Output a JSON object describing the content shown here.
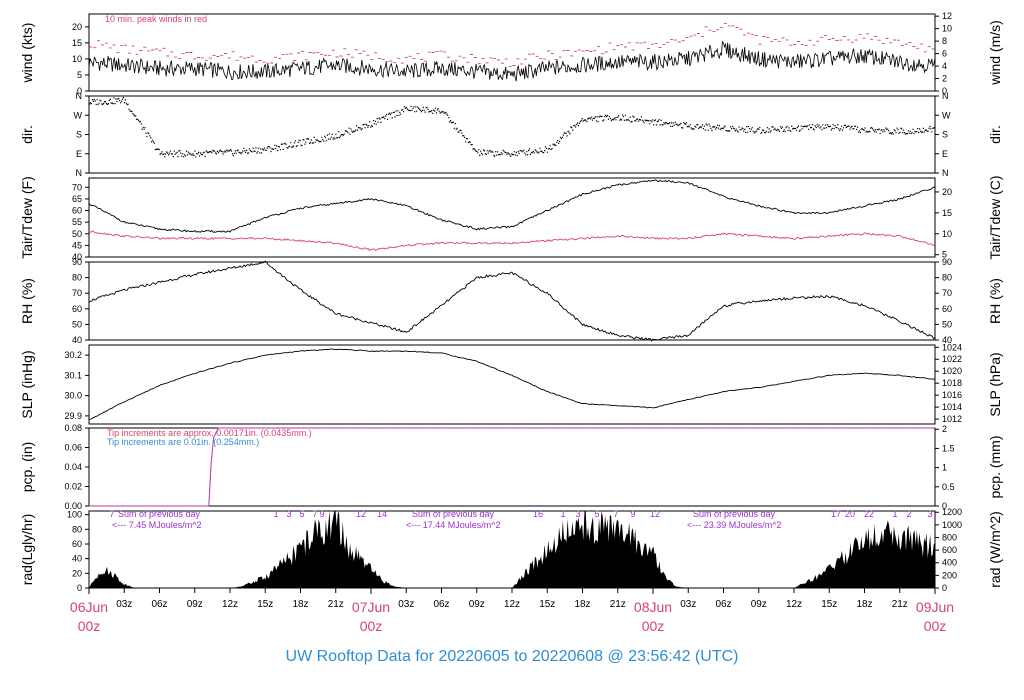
{
  "footer_title": "UW Rooftop Data for 20220605  to  20220608 @ 23:56:42  (UTC)",
  "colors": {
    "red": "#d8436d",
    "blue": "#2f8fd0",
    "purple": "#9a2fd0",
    "black": "#000000"
  },
  "x_axis": {
    "hour_ticks": [
      "03z",
      "06z",
      "09z",
      "12z",
      "15z",
      "18z",
      "21z",
      "03z",
      "06z",
      "09z",
      "12z",
      "15z",
      "18z",
      "21z",
      "03z",
      "06z",
      "09z",
      "12z",
      "15z",
      "18z",
      "21z"
    ],
    "day_labels": [
      {
        "date": "06Jun",
        "time": "00z"
      },
      {
        "date": "07Jun",
        "time": "00z"
      },
      {
        "date": "08Jun",
        "time": "00z"
      },
      {
        "date": "09Jun",
        "time": "00z"
      }
    ]
  },
  "chart_data": [
    {
      "type": "line",
      "name": "wind",
      "ylabel_left": "wind (kts)",
      "ylabel_right": "wind (m/s)",
      "ylim": [
        0,
        24
      ],
      "yticks_left": [
        "0",
        "5",
        "10",
        "15",
        "20"
      ],
      "yticks_right": [
        "0",
        "2",
        "4",
        "6",
        "8",
        "10",
        "12"
      ],
      "annotation": "10 min. peak winds in red",
      "x_hours": [
        0,
        3,
        6,
        9,
        12,
        15,
        18,
        21,
        24,
        27,
        30,
        33,
        36,
        39,
        42,
        45,
        48,
        51,
        54,
        57,
        60,
        63,
        66,
        69,
        72
      ],
      "series": [
        {
          "values": [
            9,
            8,
            7,
            7,
            6,
            6,
            7,
            8,
            7,
            6,
            7,
            6,
            5,
            7,
            8,
            9,
            9,
            10,
            13,
            10,
            9,
            10,
            11,
            9,
            8
          ]
        },
        {
          "values": [
            15,
            13,
            12,
            11,
            11,
            10,
            11,
            12,
            11,
            10,
            11,
            10,
            9,
            11,
            12,
            14,
            14,
            16,
            21,
            16,
            15,
            16,
            17,
            15,
            13
          ]
        }
      ]
    },
    {
      "type": "scatter",
      "name": "dir",
      "ylabel_left": "dir.",
      "ylabel_right": "dir.",
      "yticks": [
        "N",
        "E",
        "S",
        "W",
        "N"
      ],
      "x_hours": [
        0,
        3,
        6,
        9,
        12,
        15,
        18,
        21,
        24,
        27,
        30,
        33,
        36,
        39,
        42,
        45,
        48,
        51,
        54,
        57,
        60,
        63,
        66,
        69,
        72
      ],
      "values": [
        330,
        340,
        90,
        90,
        95,
        110,
        140,
        175,
        230,
        300,
        290,
        95,
        90,
        110,
        250,
        260,
        240,
        220,
        210,
        200,
        210,
        215,
        200,
        195,
        205
      ]
    },
    {
      "type": "line",
      "name": "temp",
      "ylabel_left": "Tair/Tdew (F)",
      "ylabel_right": "Tair/Tdew (C)",
      "ylim": [
        40,
        74
      ],
      "yticks_left": [
        "40",
        "45",
        "50",
        "55",
        "60",
        "65",
        "70"
      ],
      "yticks_right": [
        "5",
        "10",
        "15",
        "20"
      ],
      "x_hours": [
        0,
        3,
        6,
        9,
        12,
        15,
        18,
        21,
        24,
        27,
        30,
        33,
        36,
        39,
        42,
        45,
        48,
        51,
        54,
        57,
        60,
        63,
        66,
        69,
        72
      ],
      "series": [
        {
          "values": [
            63,
            55,
            52,
            51,
            51,
            57,
            61,
            63,
            65,
            62,
            56,
            52,
            53,
            60,
            67,
            71,
            73,
            72,
            66,
            62,
            59,
            59,
            62,
            65,
            70
          ]
        },
        {
          "values": [
            51,
            49,
            48,
            48,
            48,
            48,
            47,
            46,
            43,
            45,
            46,
            46,
            46,
            47,
            48,
            49,
            48,
            48,
            50,
            49,
            48,
            49,
            50,
            49,
            45
          ]
        }
      ]
    },
    {
      "type": "line",
      "name": "rh",
      "ylabel_left": "RH (%)",
      "ylabel_right": "RH (%)",
      "ylim": [
        40,
        90
      ],
      "yticks": [
        "40",
        "50",
        "60",
        "70",
        "80",
        "90"
      ],
      "x_hours": [
        0,
        3,
        6,
        9,
        12,
        15,
        18,
        21,
        24,
        27,
        30,
        33,
        36,
        39,
        42,
        45,
        48,
        51,
        54,
        57,
        60,
        63,
        66,
        69,
        72
      ],
      "values": [
        65,
        72,
        77,
        82,
        86,
        90,
        72,
        57,
        51,
        45,
        62,
        80,
        83,
        70,
        50,
        43,
        40,
        43,
        62,
        65,
        67,
        68,
        62,
        52,
        41
      ]
    },
    {
      "type": "line",
      "name": "slp",
      "ylabel_left": "SLP (inHg)",
      "ylabel_right": "SLP (hPa)",
      "ylim": [
        29.86,
        30.25
      ],
      "yticks_left": [
        "29.9",
        "30.0",
        "30.1",
        "30.2"
      ],
      "yticks_right": [
        "1012",
        "1014",
        "1016",
        "1018",
        "1020",
        "1022",
        "1024"
      ],
      "x_hours": [
        0,
        3,
        6,
        9,
        12,
        15,
        18,
        21,
        24,
        27,
        30,
        33,
        36,
        39,
        42,
        45,
        48,
        51,
        54,
        57,
        60,
        63,
        66,
        69,
        72
      ],
      "values": [
        29.88,
        29.97,
        30.05,
        30.11,
        30.16,
        30.2,
        30.22,
        30.23,
        30.22,
        30.22,
        30.21,
        30.17,
        30.1,
        30.02,
        29.96,
        29.95,
        29.94,
        29.98,
        30.02,
        30.04,
        30.07,
        30.1,
        30.11,
        30.1,
        30.08
      ]
    },
    {
      "type": "line",
      "name": "pcp",
      "ylabel_left": "pcp. (in)",
      "ylabel_right": "pcp. (mm)",
      "ylim": [
        0,
        0.08
      ],
      "yticks_left": [
        "0.00",
        "0.02",
        "0.04",
        "0.06",
        "0.08"
      ],
      "yticks_right": [
        "0",
        "0.5",
        "1",
        "1.5",
        "2"
      ],
      "annotations": [
        "Tip increments are approx. 0.00171in. (0.0435mm.)",
        "Tip increments are 0.01in. (0.254mm.)"
      ],
      "x_hours": [
        0,
        10.2,
        10.4,
        10.6,
        11,
        72
      ],
      "values": [
        0,
        0,
        0.045,
        0.07,
        0.08,
        0.08
      ]
    },
    {
      "type": "area",
      "name": "rad",
      "ylabel_left": "rad(Lgly/hr)",
      "ylabel_right": "rad (W/m^2)",
      "ylim": [
        0,
        105
      ],
      "yticks_left": [
        "0",
        "20",
        "40",
        "60",
        "80",
        "100"
      ],
      "yticks_right": [
        "0",
        "200",
        "400",
        "600",
        "800",
        "1000",
        "1200"
      ],
      "daily_labels": [
        "Sum of previous day",
        "Sum of previous day",
        "Sum of previous day"
      ],
      "daily_totals": [
        "<--- 7.45 MJoules/m^2",
        "<--- 17.44 MJoules/m^2",
        "<--- 23.39 MJoules/m^2"
      ],
      "hour_marks": [
        "7",
        "1",
        "3",
        "5",
        "7",
        "9",
        "12",
        "14",
        "16",
        "1",
        "3",
        "5",
        "7",
        "9",
        "12",
        "17",
        "20",
        "22",
        "1",
        "2",
        "3",
        "4",
        "7",
        "11"
      ],
      "x_hours": [
        0,
        1,
        2,
        3,
        4,
        12,
        13,
        15,
        17,
        19,
        21,
        22,
        23,
        24,
        25,
        26,
        27,
        28,
        36,
        38,
        40,
        42,
        44,
        46,
        48,
        49,
        50,
        51,
        60,
        62,
        64,
        66,
        68,
        70,
        72
      ],
      "values": [
        0,
        25,
        20,
        5,
        0,
        0,
        2,
        15,
        40,
        70,
        95,
        55,
        40,
        25,
        10,
        2,
        0,
        0,
        0,
        35,
        70,
        85,
        85,
        70,
        45,
        15,
        2,
        0,
        0,
        15,
        40,
        65,
        75,
        65,
        55
      ]
    }
  ]
}
